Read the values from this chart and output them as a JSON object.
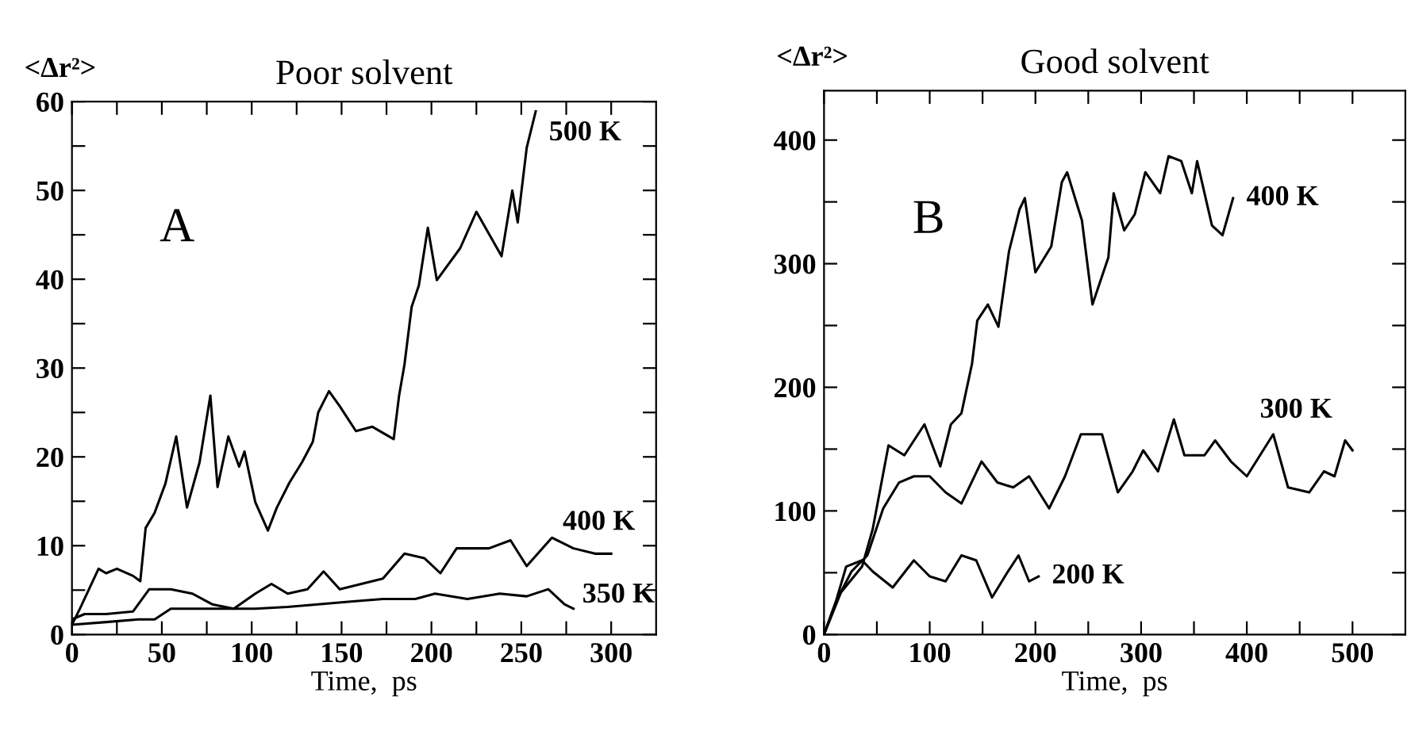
{
  "chart_data": [
    {
      "type": "line",
      "title": "Poor solvent",
      "ylabel": "<Δr²>",
      "xlabel": "Time,  ps",
      "xlim": [
        0,
        325
      ],
      "ylim": [
        0,
        60
      ],
      "xticks": [
        0,
        {
          "value": 25,
          "label": null
        },
        50,
        {
          "value": 75,
          "label": null
        },
        100,
        {
          "value": 125,
          "label": null
        },
        150,
        {
          "value": 175,
          "label": null
        },
        200,
        {
          "value": 225,
          "label": null
        },
        250,
        {
          "value": 275,
          "label": null
        },
        300
      ],
      "yticks": [
        0,
        {
          "value": 5,
          "label": null
        },
        10,
        {
          "value": 15,
          "label": null
        },
        20,
        {
          "value": 25,
          "label": null
        },
        30,
        {
          "value": 35,
          "label": null
        },
        40,
        {
          "value": 45,
          "label": null
        },
        50,
        {
          "value": 55,
          "label": null
        },
        60
      ],
      "grid": false,
      "legend": "right",
      "marker": "none",
      "line_style": "solid",
      "series": [
        {
          "name": "500 K",
          "color": "#000000",
          "x": [
            0,
            4.4,
            14.8,
            19,
            25,
            34,
            38,
            41,
            46,
            52,
            58,
            64,
            71,
            77,
            81,
            87,
            93,
            96,
            102,
            109,
            114,
            121,
            128,
            134,
            137,
            143,
            149,
            158,
            167,
            179,
            182,
            185,
            189,
            193,
            198,
            203,
            216,
            225,
            239,
            245,
            248,
            253,
            258
          ],
          "values": [
            1.1,
            2.9,
            7.4,
            6.9,
            7.4,
            6.6,
            6,
            12,
            13.7,
            17,
            22.3,
            14.3,
            19.4,
            26.9,
            16.6,
            22.3,
            18.9,
            20.6,
            14.9,
            11.7,
            14.3,
            17.1,
            19.4,
            21.7,
            25,
            27.4,
            25.7,
            22.9,
            23.4,
            22,
            26.9,
            30.4,
            36.9,
            39.3,
            45.8,
            39.9,
            43.5,
            47.6,
            42.6,
            50,
            46.4,
            54.8,
            58.9
          ]
        },
        {
          "name": "400 K",
          "color": "#000000",
          "x": [
            0,
            7,
            19,
            34,
            43,
            55,
            67,
            78,
            90,
            102,
            111,
            120,
            131,
            140,
            149,
            161,
            173,
            185,
            196,
            205,
            214,
            232,
            244,
            253,
            267,
            279,
            291,
            300
          ],
          "values": [
            1.7,
            2.3,
            2.3,
            2.6,
            5.1,
            5.1,
            4.6,
            3.4,
            2.9,
            4.6,
            5.7,
            4.6,
            5.1,
            7.1,
            5.1,
            5.7,
            6.3,
            9.1,
            8.6,
            6.9,
            9.7,
            9.7,
            10.6,
            7.7,
            10.9,
            9.7,
            9.1,
            9.1
          ]
        },
        {
          "name": "350 K",
          "color": "#000000",
          "x": [
            0,
            19,
            37,
            46,
            55,
            67,
            84,
            102,
            120,
            137,
            155,
            173,
            191,
            202,
            220,
            238,
            253,
            265,
            274,
            279
          ],
          "values": [
            1.1,
            1.4,
            1.7,
            1.7,
            2.9,
            2.9,
            2.9,
            2.9,
            3.1,
            3.4,
            3.7,
            4,
            4,
            4.6,
            4,
            4.6,
            4.3,
            5.1,
            3.4,
            2.9
          ]
        }
      ],
      "annotations": [
        "A"
      ]
    },
    {
      "type": "line",
      "title": "Good solvent",
      "ylabel": "<Δr²>",
      "xlabel": "Time,  ps",
      "xlim": [
        0,
        550
      ],
      "ylim": [
        0,
        440
      ],
      "xticks": [
        0,
        {
          "value": 50,
          "label": null
        },
        100,
        {
          "value": 150,
          "label": null
        },
        200,
        {
          "value": 250,
          "label": null
        },
        300,
        {
          "value": 350,
          "label": null
        },
        400,
        {
          "value": 450,
          "label": null
        },
        500
      ],
      "yticks": [
        0,
        {
          "value": 50,
          "label": null
        },
        100,
        {
          "value": 150,
          "label": null
        },
        200,
        {
          "value": 250,
          "label": null
        },
        300,
        {
          "value": 350,
          "label": null
        },
        400
      ],
      "grid": false,
      "legend": "right",
      "marker": "none",
      "line_style": "solid",
      "series": [
        {
          "name": "400 K",
          "color": "#000000",
          "x": [
            0,
            16,
            36,
            46,
            61,
            76,
            95,
            110,
            120,
            130,
            140,
            145,
            155,
            165,
            175,
            185,
            190,
            200,
            215,
            225,
            230,
            244,
            254,
            269,
            274,
            284,
            294,
            304,
            318,
            326,
            338,
            348,
            353,
            367,
            377,
            387
          ],
          "values": [
            0,
            34,
            55,
            85,
            153,
            145,
            170,
            136,
            170,
            179,
            219,
            254,
            267,
            249,
            310,
            344,
            353,
            293,
            314,
            366,
            374,
            335,
            267,
            305,
            357,
            327,
            340,
            374,
            357,
            387,
            383,
            357,
            383,
            331,
            323,
            353
          ]
        },
        {
          "name": "300 K",
          "color": "#000000",
          "x": [
            0,
            11,
            26,
            41,
            56,
            71,
            85,
            100,
            115,
            130,
            149,
            164,
            179,
            194,
            213,
            228,
            243,
            263,
            278,
            292,
            302,
            316,
            331,
            341,
            360,
            370,
            385,
            400,
            425,
            439,
            459,
            473,
            483,
            493,
            500
          ],
          "values": [
            0,
            26,
            51,
            64,
            102,
            123,
            128,
            128,
            115,
            106,
            140,
            123,
            119,
            128,
            102,
            128,
            162,
            162,
            115,
            132,
            149,
            132,
            174,
            145,
            145,
            157,
            140,
            128,
            162,
            119,
            115,
            132,
            128,
            157,
            149
          ]
        },
        {
          "name": "200 K",
          "color": "#000000",
          "x": [
            0,
            11,
            21,
            36,
            46,
            65,
            85,
            100,
            115,
            130,
            144,
            159,
            174,
            184,
            194,
            203
          ],
          "values": [
            0,
            26,
            55,
            60,
            51,
            38,
            60,
            47,
            43,
            64,
            60,
            30,
            51,
            64,
            43,
            47
          ]
        }
      ],
      "annotations": [
        "B"
      ]
    }
  ]
}
